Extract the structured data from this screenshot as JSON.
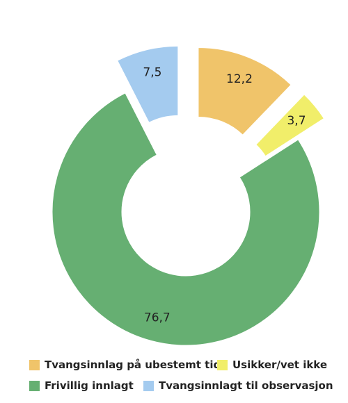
{
  "chart_data": {
    "type": "donut",
    "series": [
      {
        "name": "Tvangsinnlag på ubestemt tid",
        "value": 12.2,
        "label": "12,2",
        "color": "#F0C46A",
        "exploded": true
      },
      {
        "name": "Usikker/vet ikke",
        "value": 3.7,
        "label": "3,7",
        "color": "#F1EE6A",
        "exploded": true
      },
      {
        "name": "Frivillig innlagt",
        "value": 76.7,
        "label": "76,7",
        "color": "#66AF72",
        "exploded": false
      },
      {
        "name": "Tvangsinnlagt til observasjon",
        "value": 7.5,
        "label": "7,5",
        "color": "#A4CBEF",
        "exploded": true
      }
    ],
    "start_angle_deg": 0,
    "direction": "clockwise",
    "legend_position": "bottom"
  }
}
